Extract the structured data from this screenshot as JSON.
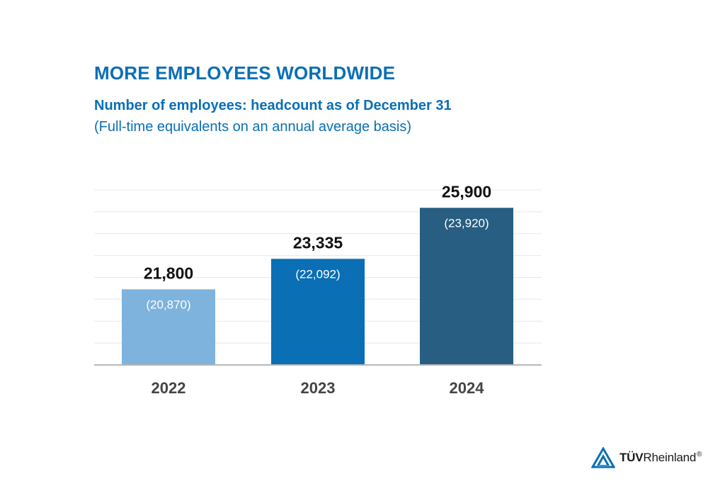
{
  "chart_data": {
    "type": "bar",
    "title": "MORE EMPLOYEES WORLDWIDE",
    "subtitle": "Number of employees: headcount as of December 31",
    "note": "(Full-time equivalents on an annual average basis)",
    "categories": [
      "2022",
      "2023",
      "2024"
    ],
    "series": [
      {
        "values": [
          21800,
          23335,
          25900
        ],
        "labels": [
          "21,800",
          "23,335",
          "25,900"
        ],
        "secondary_values": [
          20870,
          22092,
          23920
        ],
        "secondary_labels": [
          "(20,870)",
          "(22,092)",
          "(23,920)"
        ],
        "colors": [
          "#7db3dc",
          "#0a6fb5",
          "#275e82"
        ]
      }
    ],
    "xlabel": "",
    "ylabel": "",
    "ylim": [
      18000,
      26800
    ],
    "grid": true
  },
  "logo": {
    "brand_bold": "TÜV",
    "brand_rest": "Rheinland",
    "registered": "®"
  }
}
